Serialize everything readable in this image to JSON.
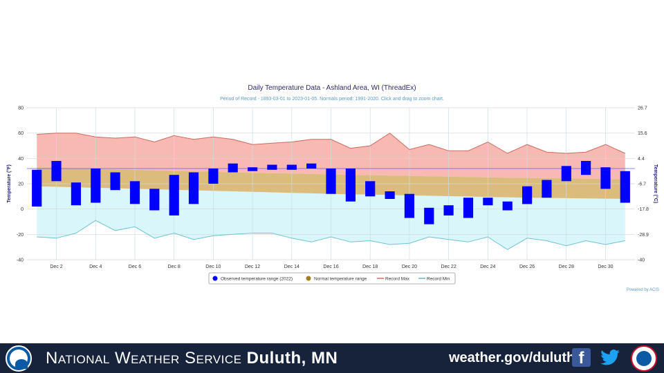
{
  "chart_data": {
    "type": "floating-bar-with-bands",
    "title": "Daily Temperature Data - Ashland Area, WI (ThreadEx)",
    "subtitle": "Period of Record - 1893-03-01 to 2023-01-05. Normals period: 1991-2020. Click and drag to zoom chart.",
    "ylabel_left": "Temperature (°F)",
    "ylabel_right": "Temperature (°C)",
    "ylim": [
      -40,
      80
    ],
    "yticks_left": [
      "80",
      "60",
      "40",
      "20",
      "0",
      "-20",
      "-40"
    ],
    "yticks_right": [
      "26.7",
      "15.6",
      "4.4",
      "-6.7",
      "-17.8",
      "-28.9",
      "-40"
    ],
    "ytick_values": [
      80,
      60,
      40,
      20,
      0,
      -20,
      -40
    ],
    "right_tick_values": [
      80,
      60,
      40,
      20,
      0,
      -20,
      -40
    ],
    "freezing_line": 32,
    "days": [
      1,
      2,
      3,
      4,
      5,
      6,
      7,
      8,
      9,
      10,
      11,
      12,
      13,
      14,
      15,
      16,
      17,
      18,
      19,
      20,
      21,
      22,
      23,
      24,
      25,
      26,
      27,
      28,
      29,
      30,
      31
    ],
    "xtick_labels": [
      {
        "day": 2,
        "label": "Dec 2"
      },
      {
        "day": 4,
        "label": "Dec 4"
      },
      {
        "day": 6,
        "label": "Dec 6"
      },
      {
        "day": 8,
        "label": "Dec 8"
      },
      {
        "day": 10,
        "label": "Dec 10"
      },
      {
        "day": 12,
        "label": "Dec 12"
      },
      {
        "day": 14,
        "label": "Dec 14"
      },
      {
        "day": 16,
        "label": "Dec 16"
      },
      {
        "day": 18,
        "label": "Dec 18"
      },
      {
        "day": 20,
        "label": "Dec 20"
      },
      {
        "day": 22,
        "label": "Dec 22"
      },
      {
        "day": 24,
        "label": "Dec 24"
      },
      {
        "day": 26,
        "label": "Dec 26"
      },
      {
        "day": 28,
        "label": "Dec 28"
      },
      {
        "day": 30,
        "label": "Dec 30"
      }
    ],
    "observed": [
      [
        2,
        31
      ],
      [
        22,
        38
      ],
      [
        3,
        21
      ],
      [
        5,
        32
      ],
      [
        15,
        29
      ],
      [
        4,
        22
      ],
      [
        -1,
        16
      ],
      [
        -5,
        27
      ],
      [
        4,
        29
      ],
      [
        20,
        32
      ],
      [
        29,
        36
      ],
      [
        30,
        33
      ],
      [
        31,
        35
      ],
      [
        31,
        35
      ],
      [
        32,
        36
      ],
      [
        12,
        32
      ],
      [
        6,
        32
      ],
      [
        10,
        22
      ],
      [
        8,
        14
      ],
      [
        -7,
        12
      ],
      [
        -12,
        1
      ],
      [
        -5,
        3
      ],
      [
        -7,
        9
      ],
      [
        3,
        9
      ],
      [
        -1,
        6
      ],
      [
        4,
        18
      ],
      [
        9,
        23
      ],
      [
        22,
        34
      ],
      [
        27,
        38
      ],
      [
        16,
        33
      ],
      [
        5,
        30
      ]
    ],
    "normal_high": [
      33,
      32.6,
      32.2,
      31.8,
      31.4,
      31,
      30.6,
      30.2,
      29.8,
      29.4,
      29,
      28.6,
      28.3,
      28,
      27.7,
      27.4,
      27.1,
      26.8,
      26.5,
      26.2,
      25.9,
      25.6,
      25.3,
      25,
      24.8,
      24.6,
      24.4,
      24.2,
      24,
      23.8,
      23.6
    ],
    "normal_low": [
      18,
      17.6,
      17.2,
      16.8,
      16.4,
      16,
      15.6,
      15.2,
      14.8,
      14.4,
      14,
      13.6,
      13.2,
      12.8,
      12.4,
      12,
      11.7,
      11.4,
      11.1,
      10.8,
      10.5,
      10.2,
      9.9,
      9.6,
      9.3,
      9,
      8.8,
      8.6,
      8.4,
      8.2,
      8
    ],
    "record_max": [
      59,
      60,
      60,
      57,
      56,
      57,
      53,
      58,
      55,
      57,
      55,
      51,
      52,
      53,
      55,
      55,
      48,
      50,
      60,
      47,
      51,
      46,
      46,
      53,
      44,
      51,
      45,
      44,
      45,
      51,
      44
    ],
    "record_min": [
      -22,
      -23,
      -19,
      -9,
      -17,
      -14,
      -23,
      -19,
      -24,
      -21,
      -20,
      -19,
      -19,
      -23,
      -26,
      -22,
      -26,
      -25,
      -28,
      -27,
      -22,
      -24,
      -26,
      -22,
      -32,
      -23,
      -25,
      -29,
      -25,
      -28,
      -25
    ],
    "legend": [
      {
        "label": "Observed temperature range (2022)",
        "type": "dot",
        "color": "#0000ff"
      },
      {
        "label": "Normal temperature range",
        "type": "dot",
        "color": "#a67c1e"
      },
      {
        "label": "Record Max",
        "type": "line",
        "color": "#d9695f"
      },
      {
        "label": "Record Min",
        "type": "line",
        "color": "#5fb9c9"
      }
    ],
    "credit": "Powered by ACIS",
    "colors": {
      "observed": "#0000ff",
      "normal_band": "#d6b066",
      "record_max_fill": "#f9b9b3",
      "record_max_line": "#c96a62",
      "record_min_fill": "#d9f6fa",
      "record_min_line": "#6cc4d1",
      "freezing": "#5a5aff",
      "title": "#2b2b6e",
      "subtitle": "#5b9bc2"
    }
  },
  "footer": {
    "title_sc": "National Weather Service",
    "title_bold": "Duluth, MN",
    "url": "weather.gov/duluth",
    "facebook_glyph": "f",
    "noaa_logo": "noaa-logo-icon",
    "nws_logo": "nws-logo-icon",
    "bg_color": "#17233a"
  }
}
